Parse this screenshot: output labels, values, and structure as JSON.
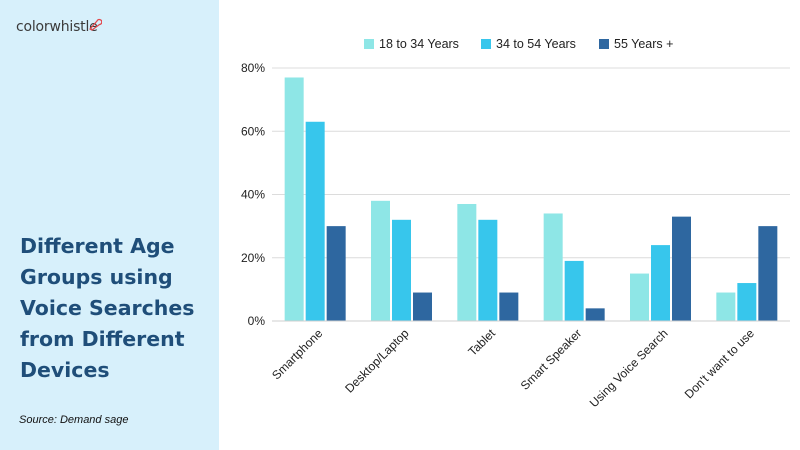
{
  "brand": {
    "logo_text": "colorwhistle",
    "logo_icon": "whistle-icon",
    "accent_color": "#e2474c"
  },
  "headline": {
    "lines": [
      "Different Age",
      "Groups using",
      "Voice Searches",
      "from Different",
      "Devices"
    ]
  },
  "source": "Source: Demand sage",
  "colors": {
    "panel_background": "#d7f0fb",
    "title_color": "#1f4e79"
  },
  "chart_data": {
    "type": "bar",
    "title": "",
    "xlabel": "",
    "ylabel": "",
    "ylim": [
      0,
      80
    ],
    "yticks": [
      0,
      20,
      40,
      60,
      80
    ],
    "ytick_labels": [
      "0%",
      "20%",
      "40%",
      "60%",
      "80%"
    ],
    "grid": true,
    "legend_position": "top",
    "categories": [
      "Smartphone",
      "Desktop/Laptop",
      "Tablet",
      "Smart Speaker",
      "Using Voice Search",
      "Don't want to use"
    ],
    "series": [
      {
        "name": "18 to 34 Years",
        "color": "#8ee6e6",
        "values": [
          77,
          38,
          37,
          34,
          15,
          9
        ]
      },
      {
        "name": "34 to 54 Years",
        "color": "#37c6ec",
        "values": [
          63,
          32,
          32,
          19,
          24,
          12
        ]
      },
      {
        "name": "55 Years +",
        "color": "#2e67a0",
        "values": [
          30,
          9,
          9,
          4,
          33,
          30
        ]
      }
    ]
  }
}
